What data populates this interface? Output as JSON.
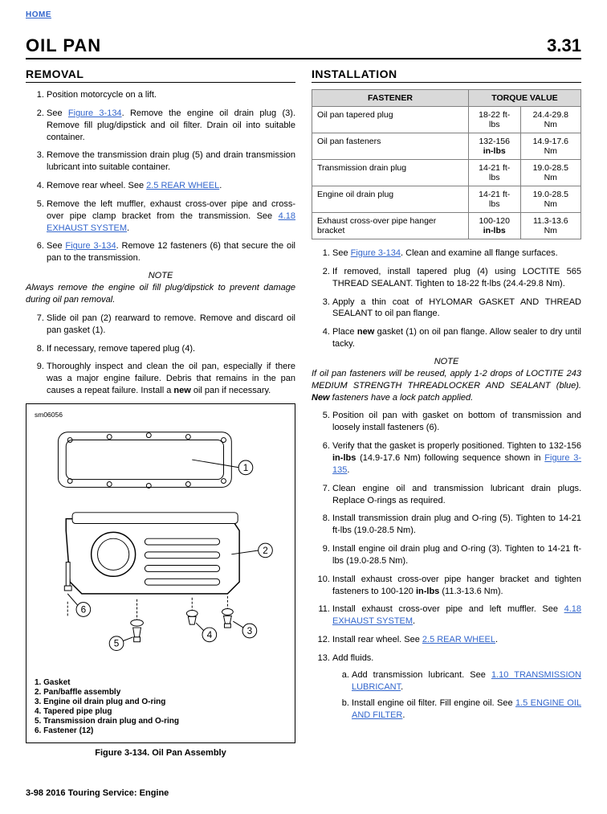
{
  "nav": {
    "home": "HOME"
  },
  "title": "OIL PAN",
  "section_number": "3.31",
  "left": {
    "heading": "REMOVAL",
    "step1": "Position motorcycle on a lift.",
    "step2a": "See ",
    "step2_link": "Figure 3-134",
    "step2b": ". Remove the engine oil drain plug (3). Remove fill plug/dipstick and oil filter. Drain oil into suitable container.",
    "step3": "Remove the transmission drain plug (5) and drain transmission lubricant into suitable container.",
    "step4a": "Remove rear wheel. See ",
    "step4_link": "2.5 REAR WHEEL",
    "step4b": ".",
    "step5a": "Remove the left muffler, exhaust cross-over pipe and cross-over pipe clamp bracket from the transmission. See ",
    "step5_link": "4.18 EXHAUST SYSTEM",
    "step5b": ".",
    "step6a": "See ",
    "step6_link": "Figure 3-134",
    "step6b": ". Remove 12 fasteners (6) that secure the oil pan to the transmission.",
    "note1_head": "NOTE",
    "note1_body": "Always remove the engine oil fill plug/dipstick to prevent damage during oil pan removal.",
    "step7": "Slide oil pan (2) rearward to remove. Remove and discard oil pan gasket (1).",
    "step8": "If necessary, remove tapered plug (4).",
    "step9a": "Thoroughly inspect and clean the oil pan, especially if there was a major engine failure. Debris that remains in the pan causes a repeat failure. Install a ",
    "step9_bold": "new",
    "step9b": " oil pan if necessary.",
    "fig_id": "sm06056",
    "legend": {
      "l1": "1.   Gasket",
      "l2": "2.   Pan/baffle assembly",
      "l3": "3.   Engine oil drain plug and O-ring",
      "l4": "4.   Tapered pipe plug",
      "l5": "5.   Transmission drain plug and O-ring",
      "l6": "6.   Fastener (12)"
    },
    "caption": "Figure 3-134. Oil Pan Assembly"
  },
  "right": {
    "heading": "INSTALLATION",
    "th1": "FASTENER",
    "th2": "TORQUE VALUE",
    "rows": [
      {
        "a": "Oil pan tapered plug",
        "b": "18-22 ft-lbs",
        "c": "24.4-29.8 Nm"
      },
      {
        "a": "Oil pan fasteners",
        "b": "132-156 in-lbs",
        "c": "14.9-17.6 Nm"
      },
      {
        "a": "Transmission drain plug",
        "b": "14-21 ft-lbs",
        "c": "19.0-28.5 Nm"
      },
      {
        "a": "Engine oil drain plug",
        "b": "14-21 ft-lbs",
        "c": "19.0-28.5 Nm"
      },
      {
        "a": "Exhaust cross-over pipe hanger bracket",
        "b": "100-120 in-lbs",
        "c": "11.3-13.6 Nm"
      }
    ],
    "r1a": "See ",
    "r1_link": "Figure 3-134",
    "r1b": ". Clean and examine all flange surfaces.",
    "r2": "If removed, install tapered plug (4) using LOCTITE 565 THREAD SEALANT. Tighten to 18-22 ft-lbs (24.4-29.8 Nm).",
    "r3": "Apply a thin coat of HYLOMAR GASKET AND THREAD SEALANT to oil pan flange.",
    "r4a": "Place ",
    "r4_bold": "new",
    "r4b": " gasket (1) on oil pan flange. Allow sealer to dry until tacky.",
    "note2_head": "NOTE",
    "note2a": "If oil pan fasteners will be reused, apply 1-2 drops of LOCTITE 243 MEDIUM STRENGTH THREADLOCKER AND SEALANT (blue). ",
    "note2_bold": "New",
    "note2b": " fasteners have a lock patch applied.",
    "r5": "Position oil pan with gasket on bottom of transmission and loosely install fasteners (6).",
    "r6a": "Verify that the gasket is properly positioned. Tighten to 132-156 ",
    "r6_bold": "in-lbs",
    "r6b": " (14.9-17.6 Nm) following sequence shown in ",
    "r6_link": "Figure 3-135",
    "r6c": ".",
    "r7": "Clean engine oil and transmission lubricant drain plugs. Replace O-rings as required.",
    "r8": "Install transmission drain plug and O-ring (5). Tighten to 14-21 ft-lbs (19.0-28.5 Nm).",
    "r9": "Install engine oil drain plug and O-ring (3). Tighten to 14-21 ft-lbs (19.0-28.5 Nm).",
    "r10a": "Install exhaust cross-over pipe hanger bracket and tighten fasteners to 100-120 ",
    "r10_bold": "in-lbs",
    "r10b": " (11.3-13.6 Nm).",
    "r11a": "Install exhaust cross-over pipe and left muffler. See ",
    "r11_link": "4.18 EXHAUST SYSTEM",
    "r11b": ".",
    "r12a": "Install rear wheel. See ",
    "r12_link": "2.5 REAR WHEEL",
    "r12b": ".",
    "r13": "Add fluids.",
    "r13aa": "Add transmission lubricant. See ",
    "r13a_link": "1.10 TRANSMISSION LUBRICANT",
    "r13ab": ".",
    "r13ba": "Install engine oil filter. Fill engine oil. See ",
    "r13b_link": "1.5 ENGINE OIL AND FILTER",
    "r13bb": "."
  },
  "footer": "3-98   2016 Touring Service:  Engine"
}
